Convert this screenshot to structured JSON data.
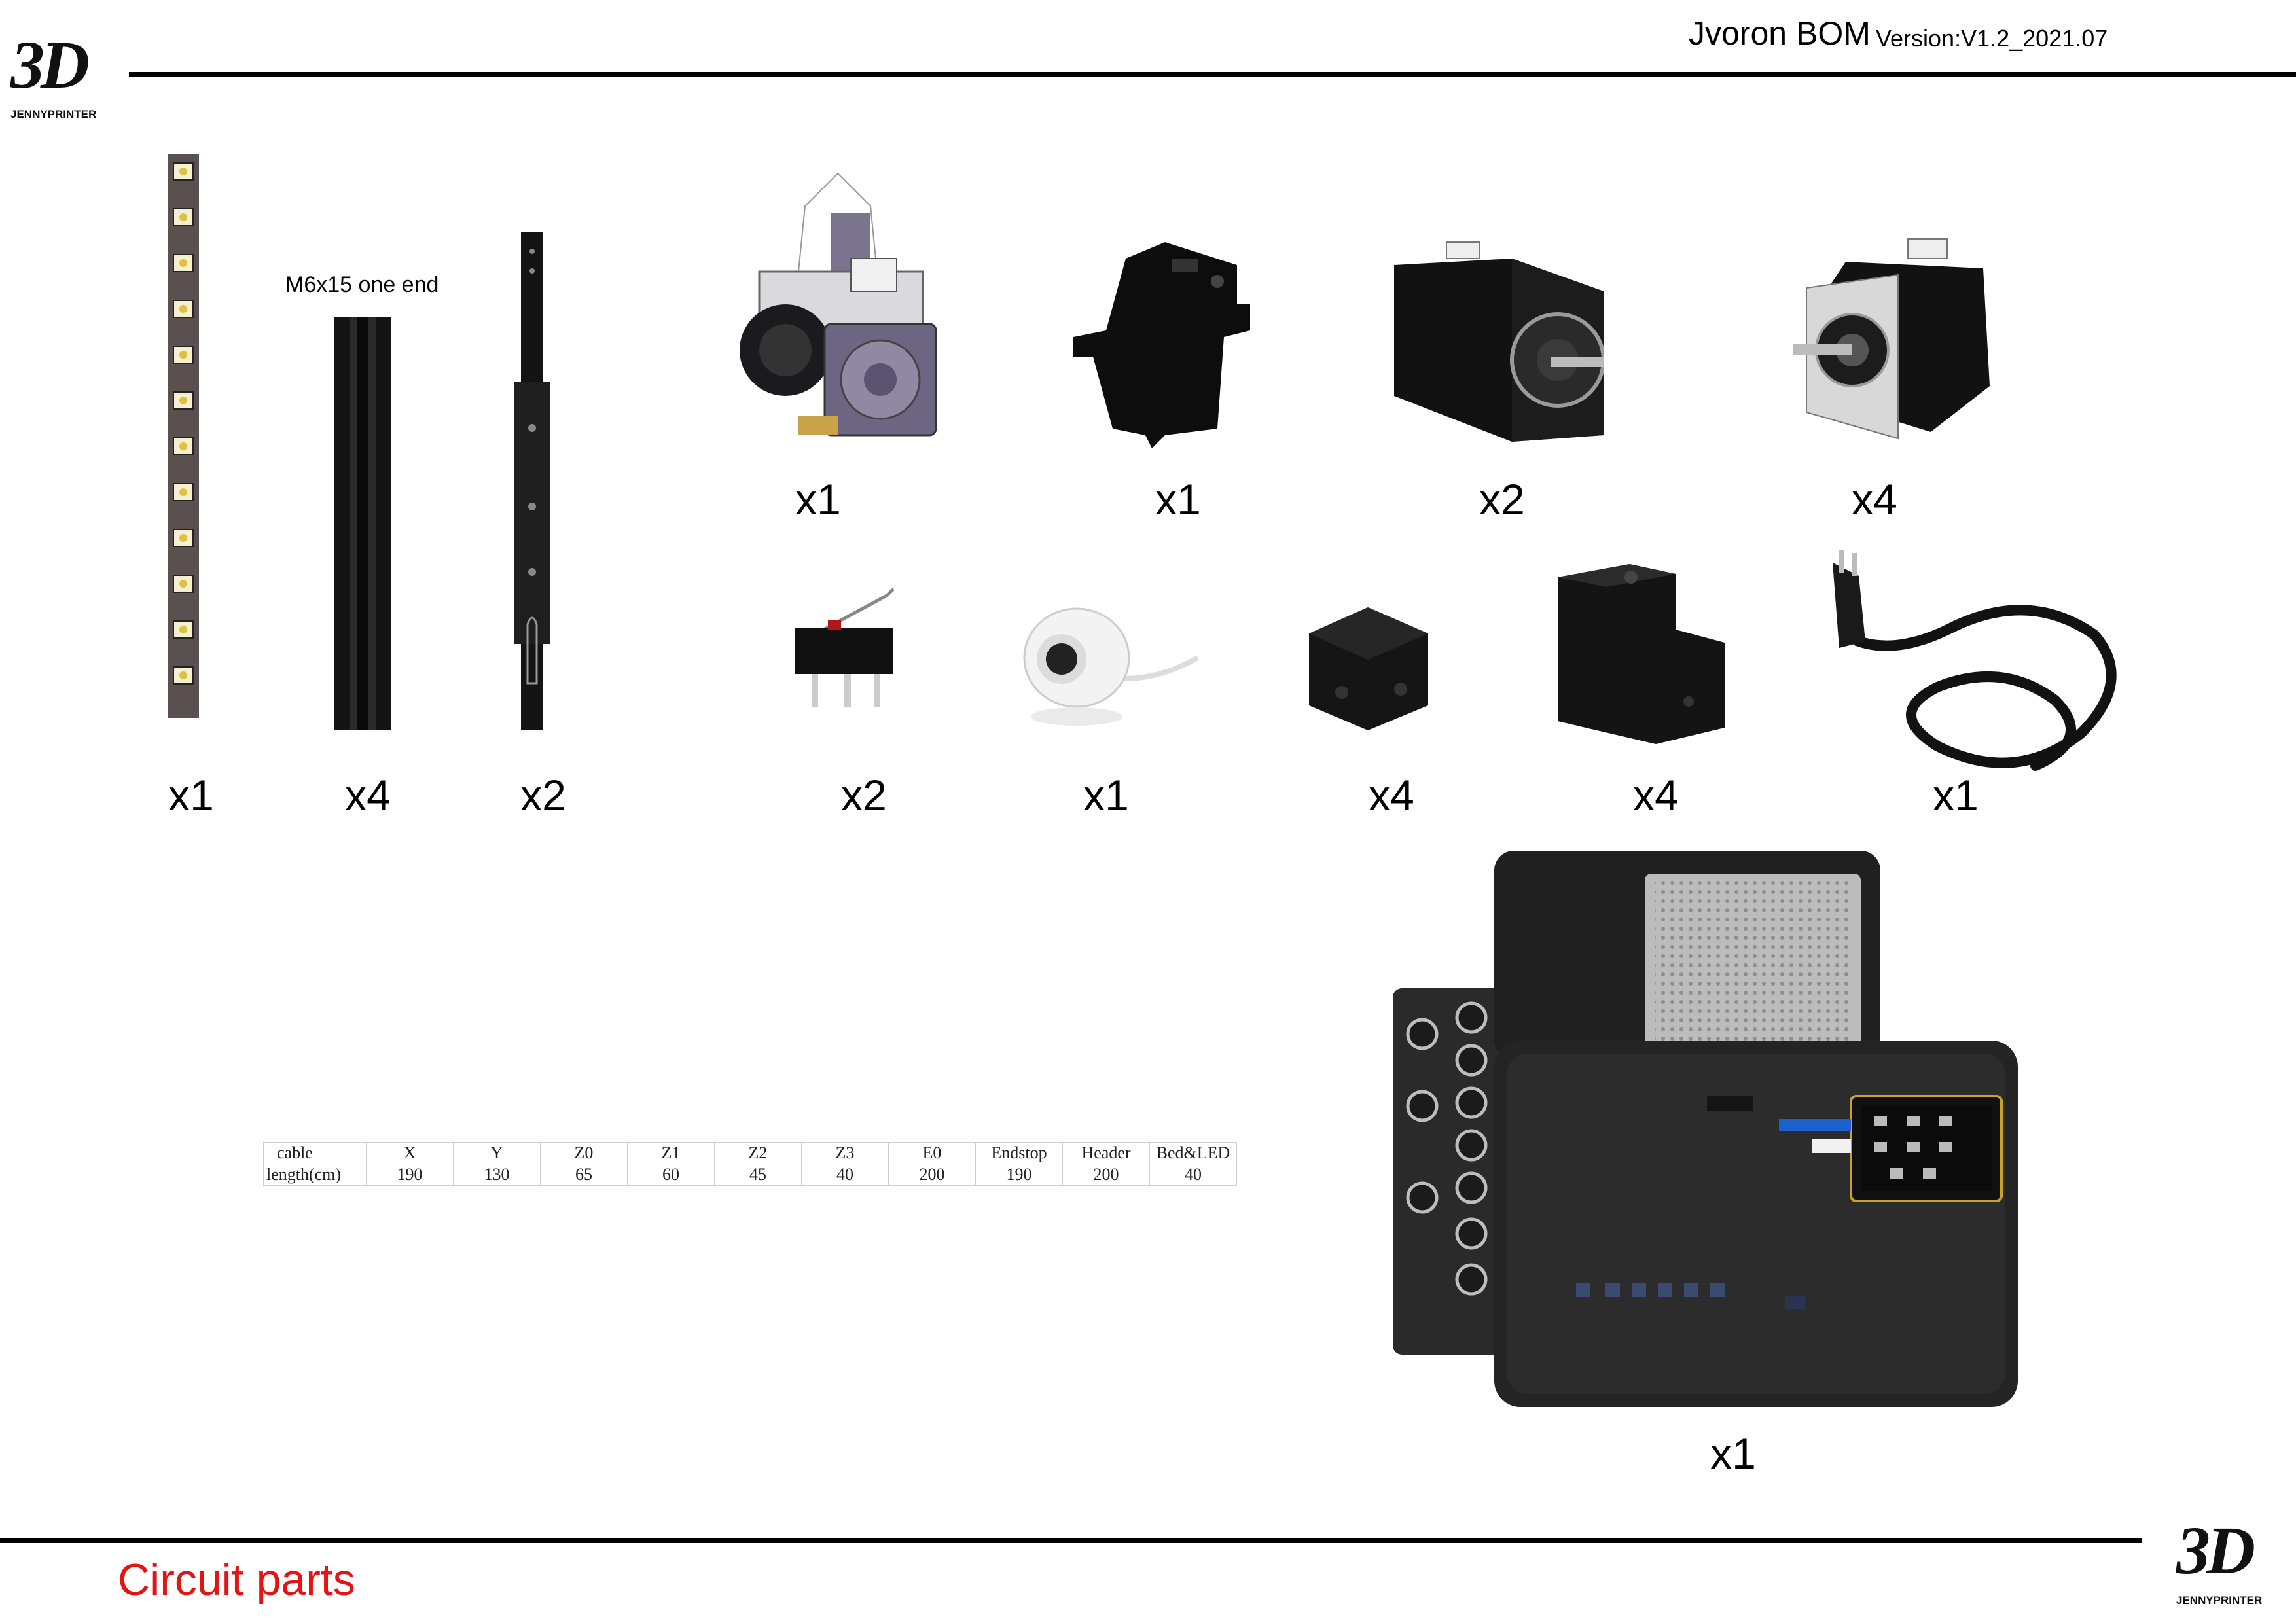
{
  "header": {
    "title": "Jvoron BOM",
    "version": "Version:V1.2_2021.07",
    "logo_mark": "3D",
    "logo_text": "JENNYPRINTER"
  },
  "parts_row1": [
    {
      "icon": "extruder-toolhead",
      "qty": "x1"
    },
    {
      "icon": "x-carriage-block",
      "qty": "x1"
    },
    {
      "icon": "stepper-motor-large",
      "qty": "x2"
    },
    {
      "icon": "stepper-motor-small",
      "qty": "x4"
    }
  ],
  "parts_row2": [
    {
      "icon": "led-strip",
      "qty": "x1"
    },
    {
      "icon": "aluminum-extrusion",
      "qty": "x4",
      "note": "M6x15 one end"
    },
    {
      "icon": "linear-rail",
      "qty": "x2"
    },
    {
      "icon": "micro-switch",
      "qty": "x2"
    },
    {
      "icon": "webcam",
      "qty": "x1"
    },
    {
      "icon": "cube-block",
      "qty": "x4"
    },
    {
      "icon": "mount-block",
      "qty": "x4"
    },
    {
      "icon": "power-cord",
      "qty": "x1"
    }
  ],
  "electronics": {
    "icon": "electronics-box",
    "qty": "x1"
  },
  "cable_table": {
    "headers": [
      "cable",
      "X",
      "Y",
      "Z0",
      "Z1",
      "Z2",
      "Z3",
      "E0",
      "Endstop",
      "Header",
      "Bed&LED"
    ],
    "values": [
      "length(cm)",
      "190",
      "130",
      "65",
      "60",
      "45",
      "40",
      "200",
      "190",
      "200",
      "40"
    ]
  },
  "footer": {
    "title": "Circuit parts"
  },
  "colors": {
    "footer_title": "#e31414",
    "rule": "#000000"
  }
}
